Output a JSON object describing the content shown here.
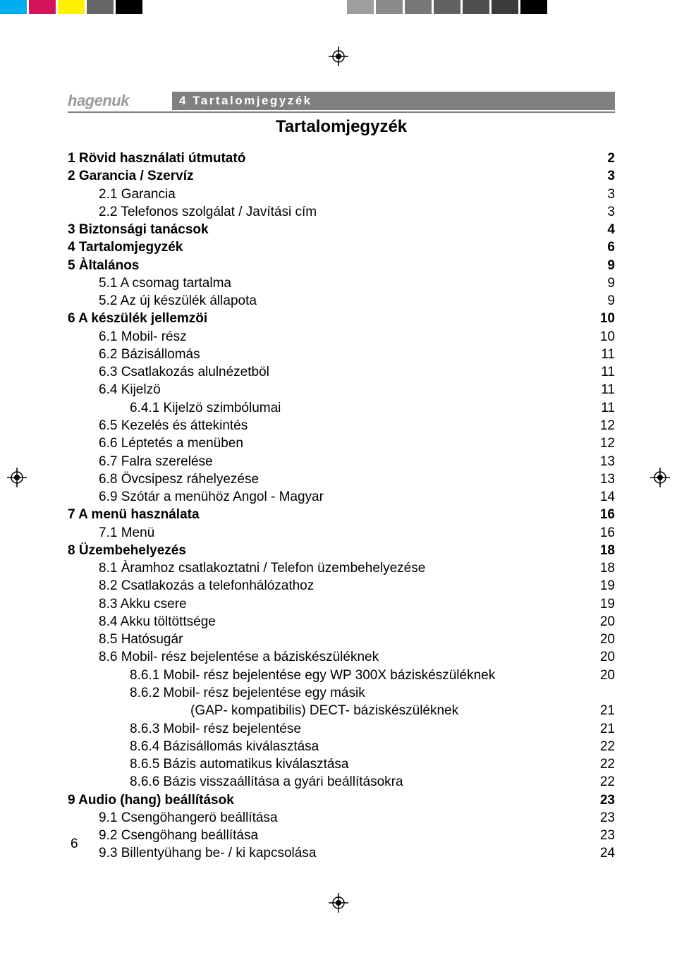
{
  "colorBar": [
    "#00adee",
    "#d4145a",
    "#fff100",
    "#666666",
    "#000000",
    "#ffffff",
    "#ffffff",
    "#ffffff",
    "#ffffff",
    "#ffffff",
    "#ffffff",
    "#ffffff",
    "#9e9e9e",
    "#8a8a8a",
    "#777777",
    "#626262",
    "#4f4f4f",
    "#3b3b3b",
    "#000000"
  ],
  "brand": "hagenuk",
  "sectionChip": "4 Tartalomjegyzék",
  "tocTitle": "Tartalomjegyzék",
  "toc": [
    {
      "lvl": 0,
      "label": "1 Rövid használati útmutató",
      "page": "2"
    },
    {
      "lvl": 0,
      "label": "2 Garancia / Szervíz",
      "page": "3"
    },
    {
      "lvl": 1,
      "label": "2.1 Garancia",
      "page": "3"
    },
    {
      "lvl": 1,
      "label": "2.2 Telefonos szolgálat / Javítási cím",
      "page": "3"
    },
    {
      "lvl": 0,
      "label": "3 Biztonsági tanácsok",
      "page": "4"
    },
    {
      "lvl": 0,
      "label": "4 Tartalomjegyzék",
      "page": "6"
    },
    {
      "lvl": 0,
      "label": "5 Àltalános",
      "page": "9"
    },
    {
      "lvl": 1,
      "label": "5.1 A csomag tartalma",
      "page": "9"
    },
    {
      "lvl": 1,
      "label": "5.2 Az új készülék állapota",
      "page": "9"
    },
    {
      "lvl": 0,
      "label": "6 A készülék jellemzöi",
      "page": "10"
    },
    {
      "lvl": 1,
      "label": "6.1 Mobil- rész",
      "page": "10"
    },
    {
      "lvl": 1,
      "label": "6.2 Bázisállomás",
      "page": "11"
    },
    {
      "lvl": 1,
      "label": "6.3 Csatlakozás alulnézetböl",
      "page": "11"
    },
    {
      "lvl": 1,
      "label": "6.4 Kijelzö",
      "page": "11"
    },
    {
      "lvl": 2,
      "label": "6.4.1 Kijelzö szimbólumai",
      "page": "11"
    },
    {
      "lvl": 1,
      "label": "6.5 Kezelés és áttekintés",
      "page": "12"
    },
    {
      "lvl": 1,
      "label": "6.6 Léptetés a menüben",
      "page": "12"
    },
    {
      "lvl": 1,
      "label": "6.7 Falra szerelése",
      "page": "13"
    },
    {
      "lvl": 1,
      "label": "6.8 Övcsipesz ráhelyezése",
      "page": "13"
    },
    {
      "lvl": 1,
      "label": "6.9 Szótár a menühöz Angol - Magyar",
      "page": "14"
    },
    {
      "lvl": 0,
      "label": "7 A menü használata",
      "page": "16"
    },
    {
      "lvl": 1,
      "label": "7.1 Menü",
      "page": "16"
    },
    {
      "lvl": 0,
      "label": "8 Üzembehelyezés",
      "page": "18"
    },
    {
      "lvl": 1,
      "label": "8.1 Àramhoz csatlakoztatni / Telefon üzembehelyezése",
      "page": "18"
    },
    {
      "lvl": 1,
      "label": "8.2 Csatlakozás a telefonhálózathoz",
      "page": "19"
    },
    {
      "lvl": 1,
      "label": "8.3 Akku csere",
      "page": "19"
    },
    {
      "lvl": 1,
      "label": "8.4 Akku töltöttsége",
      "page": "20"
    },
    {
      "lvl": 1,
      "label": "8.5 Hatósugár",
      "page": "20"
    },
    {
      "lvl": 1,
      "label": "8.6 Mobil- rész bejelentése a báziskészüléknek",
      "page": "20"
    },
    {
      "lvl": 2,
      "label": "8.6.1 Mobil- rész bejelentése egy WP 300X báziskészüléknek",
      "page": "20"
    },
    {
      "lvl": 2,
      "label": "8.6.2 Mobil- rész bejelentése egy másik",
      "page": ""
    },
    {
      "lvl": "2b",
      "label": "(GAP- kompatibilis) DECT- báziskészüléknek",
      "page": "21"
    },
    {
      "lvl": 2,
      "label": "8.6.3 Mobil- rész bejelentése",
      "page": "21"
    },
    {
      "lvl": 2,
      "label": "8.6.4 Bázisállomás kiválasztása",
      "page": "22"
    },
    {
      "lvl": 2,
      "label": "8.6.5 Bázis automatikus kiválasztása",
      "page": "22"
    },
    {
      "lvl": 2,
      "label": "8.6.6 Bázis visszaállítása a gyári beállításokra",
      "page": "22"
    },
    {
      "lvl": 0,
      "label": "9 Audio (hang) beállítások",
      "page": "23"
    },
    {
      "lvl": 1,
      "label": "9.1 Csengöhangerö beállítása",
      "page": "23"
    },
    {
      "lvl": 1,
      "label": "9.2 Csengöhang beállítása",
      "page": "23"
    },
    {
      "lvl": 1,
      "label": "9.3 Billentyühang be- / ki kapcsolása",
      "page": "24"
    }
  ],
  "pageNumber": "6"
}
